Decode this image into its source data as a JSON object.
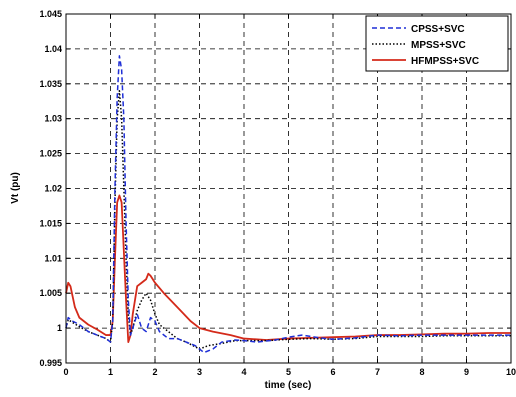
{
  "chart_data": {
    "type": "line",
    "title": "",
    "xlabel": "time (sec)",
    "ylabel": "Vt (pu)",
    "xlim": [
      0,
      10
    ],
    "ylim": [
      0.995,
      1.045
    ],
    "grid": true,
    "grid_style": "dashed",
    "legend_position": "top-right",
    "x_ticks": [
      "0",
      "1",
      "2",
      "3",
      "4",
      "5",
      "6",
      "7",
      "8",
      "9",
      "10"
    ],
    "y_ticks": [
      "0.995",
      "1",
      "1.005",
      "1.01",
      "1.015",
      "1.02",
      "1.025",
      "1.03",
      "1.035",
      "1.04",
      "1.045"
    ],
    "series": [
      {
        "name": "CPSS+SVC",
        "color": "#1f2fd6",
        "style": "dashed",
        "points": [
          [
            0,
            1.0
          ],
          [
            0.05,
            1.0015
          ],
          [
            0.15,
            1.001
          ],
          [
            0.3,
            1.0005
          ],
          [
            0.5,
            0.9995
          ],
          [
            0.7,
            0.999
          ],
          [
            0.9,
            0.9985
          ],
          [
            1.0,
            0.998
          ],
          [
            1.05,
            1.001
          ],
          [
            1.1,
            1.02
          ],
          [
            1.15,
            1.033
          ],
          [
            1.2,
            1.039
          ],
          [
            1.25,
            1.037
          ],
          [
            1.3,
            1.03
          ],
          [
            1.35,
            1.015
          ],
          [
            1.4,
            1.004
          ],
          [
            1.45,
            0.999
          ],
          [
            1.5,
            1.0
          ],
          [
            1.6,
            1.002
          ],
          [
            1.7,
            1.0
          ],
          [
            1.8,
            0.9995
          ],
          [
            1.9,
            1.0015
          ],
          [
            2.0,
            1.001
          ],
          [
            2.1,
            0.9995
          ],
          [
            2.3,
            0.9985
          ],
          [
            2.5,
            0.9985
          ],
          [
            2.7,
            0.998
          ],
          [
            2.9,
            0.9975
          ],
          [
            3.1,
            0.9965
          ],
          [
            3.3,
            0.997
          ],
          [
            3.5,
            0.998
          ],
          [
            3.8,
            0.9983
          ],
          [
            4.0,
            0.9982
          ],
          [
            4.3,
            0.998
          ],
          [
            4.7,
            0.9983
          ],
          [
            5.0,
            0.9987
          ],
          [
            5.3,
            0.999
          ],
          [
            5.7,
            0.9986
          ],
          [
            6.0,
            0.9984
          ],
          [
            6.5,
            0.9986
          ],
          [
            7.0,
            0.999
          ],
          [
            7.5,
            0.9989
          ],
          [
            8.0,
            0.999
          ],
          [
            8.5,
            0.999
          ],
          [
            9.0,
            0.999
          ],
          [
            9.5,
            0.999
          ],
          [
            10,
            0.999
          ]
        ]
      },
      {
        "name": "MPSS+SVC",
        "color": "#000000",
        "style": "dotted",
        "points": [
          [
            0,
            1.0
          ],
          [
            0.05,
            1.0012
          ],
          [
            0.15,
            1.0008
          ],
          [
            0.3,
            1.0002
          ],
          [
            0.5,
            0.9995
          ],
          [
            0.7,
            0.999
          ],
          [
            0.9,
            0.9985
          ],
          [
            1.0,
            0.998
          ],
          [
            1.05,
            1.001
          ],
          [
            1.1,
            1.018
          ],
          [
            1.15,
            1.03
          ],
          [
            1.2,
            1.034
          ],
          [
            1.25,
            1.03
          ],
          [
            1.3,
            1.02
          ],
          [
            1.35,
            1.01
          ],
          [
            1.4,
            1.002
          ],
          [
            1.45,
            0.999
          ],
          [
            1.5,
            1.0
          ],
          [
            1.6,
            1.0025
          ],
          [
            1.7,
            1.004
          ],
          [
            1.8,
            1.005
          ],
          [
            1.9,
            1.004
          ],
          [
            2.0,
            1.002
          ],
          [
            2.1,
            1.0005
          ],
          [
            2.3,
            0.9995
          ],
          [
            2.5,
            0.9985
          ],
          [
            2.7,
            0.998
          ],
          [
            3.0,
            0.997
          ],
          [
            3.2,
            0.9975
          ],
          [
            3.5,
            0.9978
          ],
          [
            3.8,
            0.9982
          ],
          [
            4.0,
            0.9982
          ],
          [
            4.5,
            0.9982
          ],
          [
            5.0,
            0.9984
          ],
          [
            5.5,
            0.9985
          ],
          [
            6.0,
            0.9984
          ],
          [
            6.5,
            0.9985
          ],
          [
            7.0,
            0.9988
          ],
          [
            7.5,
            0.9988
          ],
          [
            8.0,
            0.9988
          ],
          [
            8.5,
            0.9989
          ],
          [
            9.0,
            0.9989
          ],
          [
            9.5,
            0.9989
          ],
          [
            10,
            0.9989
          ]
        ]
      },
      {
        "name": "HFMPSS+SVC",
        "color": "#d42a1a",
        "style": "solid",
        "points": [
          [
            0,
            1.005
          ],
          [
            0.05,
            1.0065
          ],
          [
            0.1,
            1.006
          ],
          [
            0.2,
            1.003
          ],
          [
            0.3,
            1.0015
          ],
          [
            0.5,
            1.0005
          ],
          [
            0.7,
            0.9998
          ],
          [
            0.9,
            0.999
          ],
          [
            1.0,
            0.999
          ],
          [
            1.05,
            1.001
          ],
          [
            1.1,
            1.01
          ],
          [
            1.15,
            1.018
          ],
          [
            1.2,
            1.019
          ],
          [
            1.25,
            1.018
          ],
          [
            1.3,
            1.011
          ],
          [
            1.35,
            1.004
          ],
          [
            1.4,
            0.998
          ],
          [
            1.45,
            0.999
          ],
          [
            1.5,
            1.002
          ],
          [
            1.6,
            1.006
          ],
          [
            1.7,
            1.0065
          ],
          [
            1.8,
            1.007
          ],
          [
            1.85,
            1.0078
          ],
          [
            1.9,
            1.0075
          ],
          [
            2.0,
            1.0065
          ],
          [
            2.2,
            1.005
          ],
          [
            2.5,
            1.003
          ],
          [
            2.8,
            1.001
          ],
          [
            3.0,
            1.0
          ],
          [
            3.3,
            0.9995
          ],
          [
            3.7,
            0.999
          ],
          [
            4.0,
            0.9985
          ],
          [
            4.5,
            0.9983
          ],
          [
            5.0,
            0.9985
          ],
          [
            5.5,
            0.9986
          ],
          [
            6.0,
            0.9987
          ],
          [
            6.5,
            0.9988
          ],
          [
            7.0,
            0.999
          ],
          [
            7.5,
            0.999
          ],
          [
            8.0,
            0.9991
          ],
          [
            8.5,
            0.9992
          ],
          [
            9.0,
            0.9992
          ],
          [
            9.5,
            0.9993
          ],
          [
            10,
            0.9993
          ]
        ]
      }
    ]
  }
}
